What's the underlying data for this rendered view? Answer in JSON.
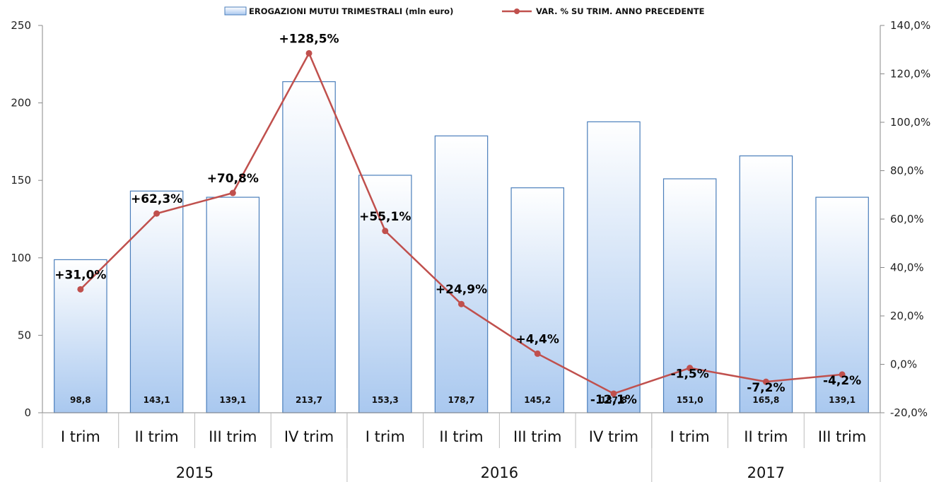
{
  "chart_data": {
    "type": "bar",
    "legend": {
      "bars": "EROGAZIONI MUTUI TRIMESTRALI (mln euro)",
      "line": "VAR. % SU TRIM. ANNO PRECEDENTE",
      "placement": "top"
    },
    "categories": [
      "I trim",
      "II trim",
      "III trim",
      "IV trim",
      "I trim",
      "II trim",
      "III trim",
      "IV trim",
      "I trim",
      "II trim",
      "III trim"
    ],
    "years": [
      {
        "label": "2015",
        "count": 4
      },
      {
        "label": "2016",
        "count": 4
      },
      {
        "label": "2017",
        "count": 3
      }
    ],
    "series": [
      {
        "name": "EROGAZIONI MUTUI TRIMESTRALI (mln euro)",
        "type": "bar",
        "axis": "left",
        "values": [
          98.8,
          143.1,
          139.1,
          213.7,
          153.3,
          178.7,
          145.2,
          187.8,
          151.0,
          165.8,
          139.1
        ],
        "labels": [
          "98,8",
          "143,1",
          "139,1",
          "213,7",
          "153,3",
          "178,7",
          "145,2",
          "187,8",
          "151,0",
          "165,8",
          "139,1"
        ]
      },
      {
        "name": "VAR. % SU TRIM. ANNO PRECEDENTE",
        "type": "line",
        "axis": "right",
        "values": [
          31.0,
          62.3,
          70.8,
          128.5,
          55.1,
          24.9,
          4.4,
          -12.1,
          -1.5,
          -7.2,
          -4.2
        ],
        "labels": [
          "+31,0%",
          "+62,3%",
          "+70,8%",
          "+128,5%",
          "+55,1%",
          "+24,9%",
          "+4,4%",
          "-12,1%",
          "-1,5%",
          "-7,2%",
          "-4,2%"
        ]
      }
    ],
    "y_left": {
      "ylim": [
        0,
        250
      ],
      "ticks": [
        "0",
        "50",
        "100",
        "150",
        "200",
        "250"
      ]
    },
    "y_right": {
      "ylim": [
        -20,
        140
      ],
      "ticks": [
        "-20,0%",
        "0,0%",
        "20,0%",
        "40,0%",
        "60,0%",
        "80,0%",
        "100,0%",
        "120,0%",
        "140,0%"
      ]
    },
    "grid": false,
    "colors": {
      "bar_top": "#ffffff",
      "bar_bottom": "#a9c8ef",
      "bar_border": "#4a7ebb",
      "line": "#c0504d"
    }
  }
}
